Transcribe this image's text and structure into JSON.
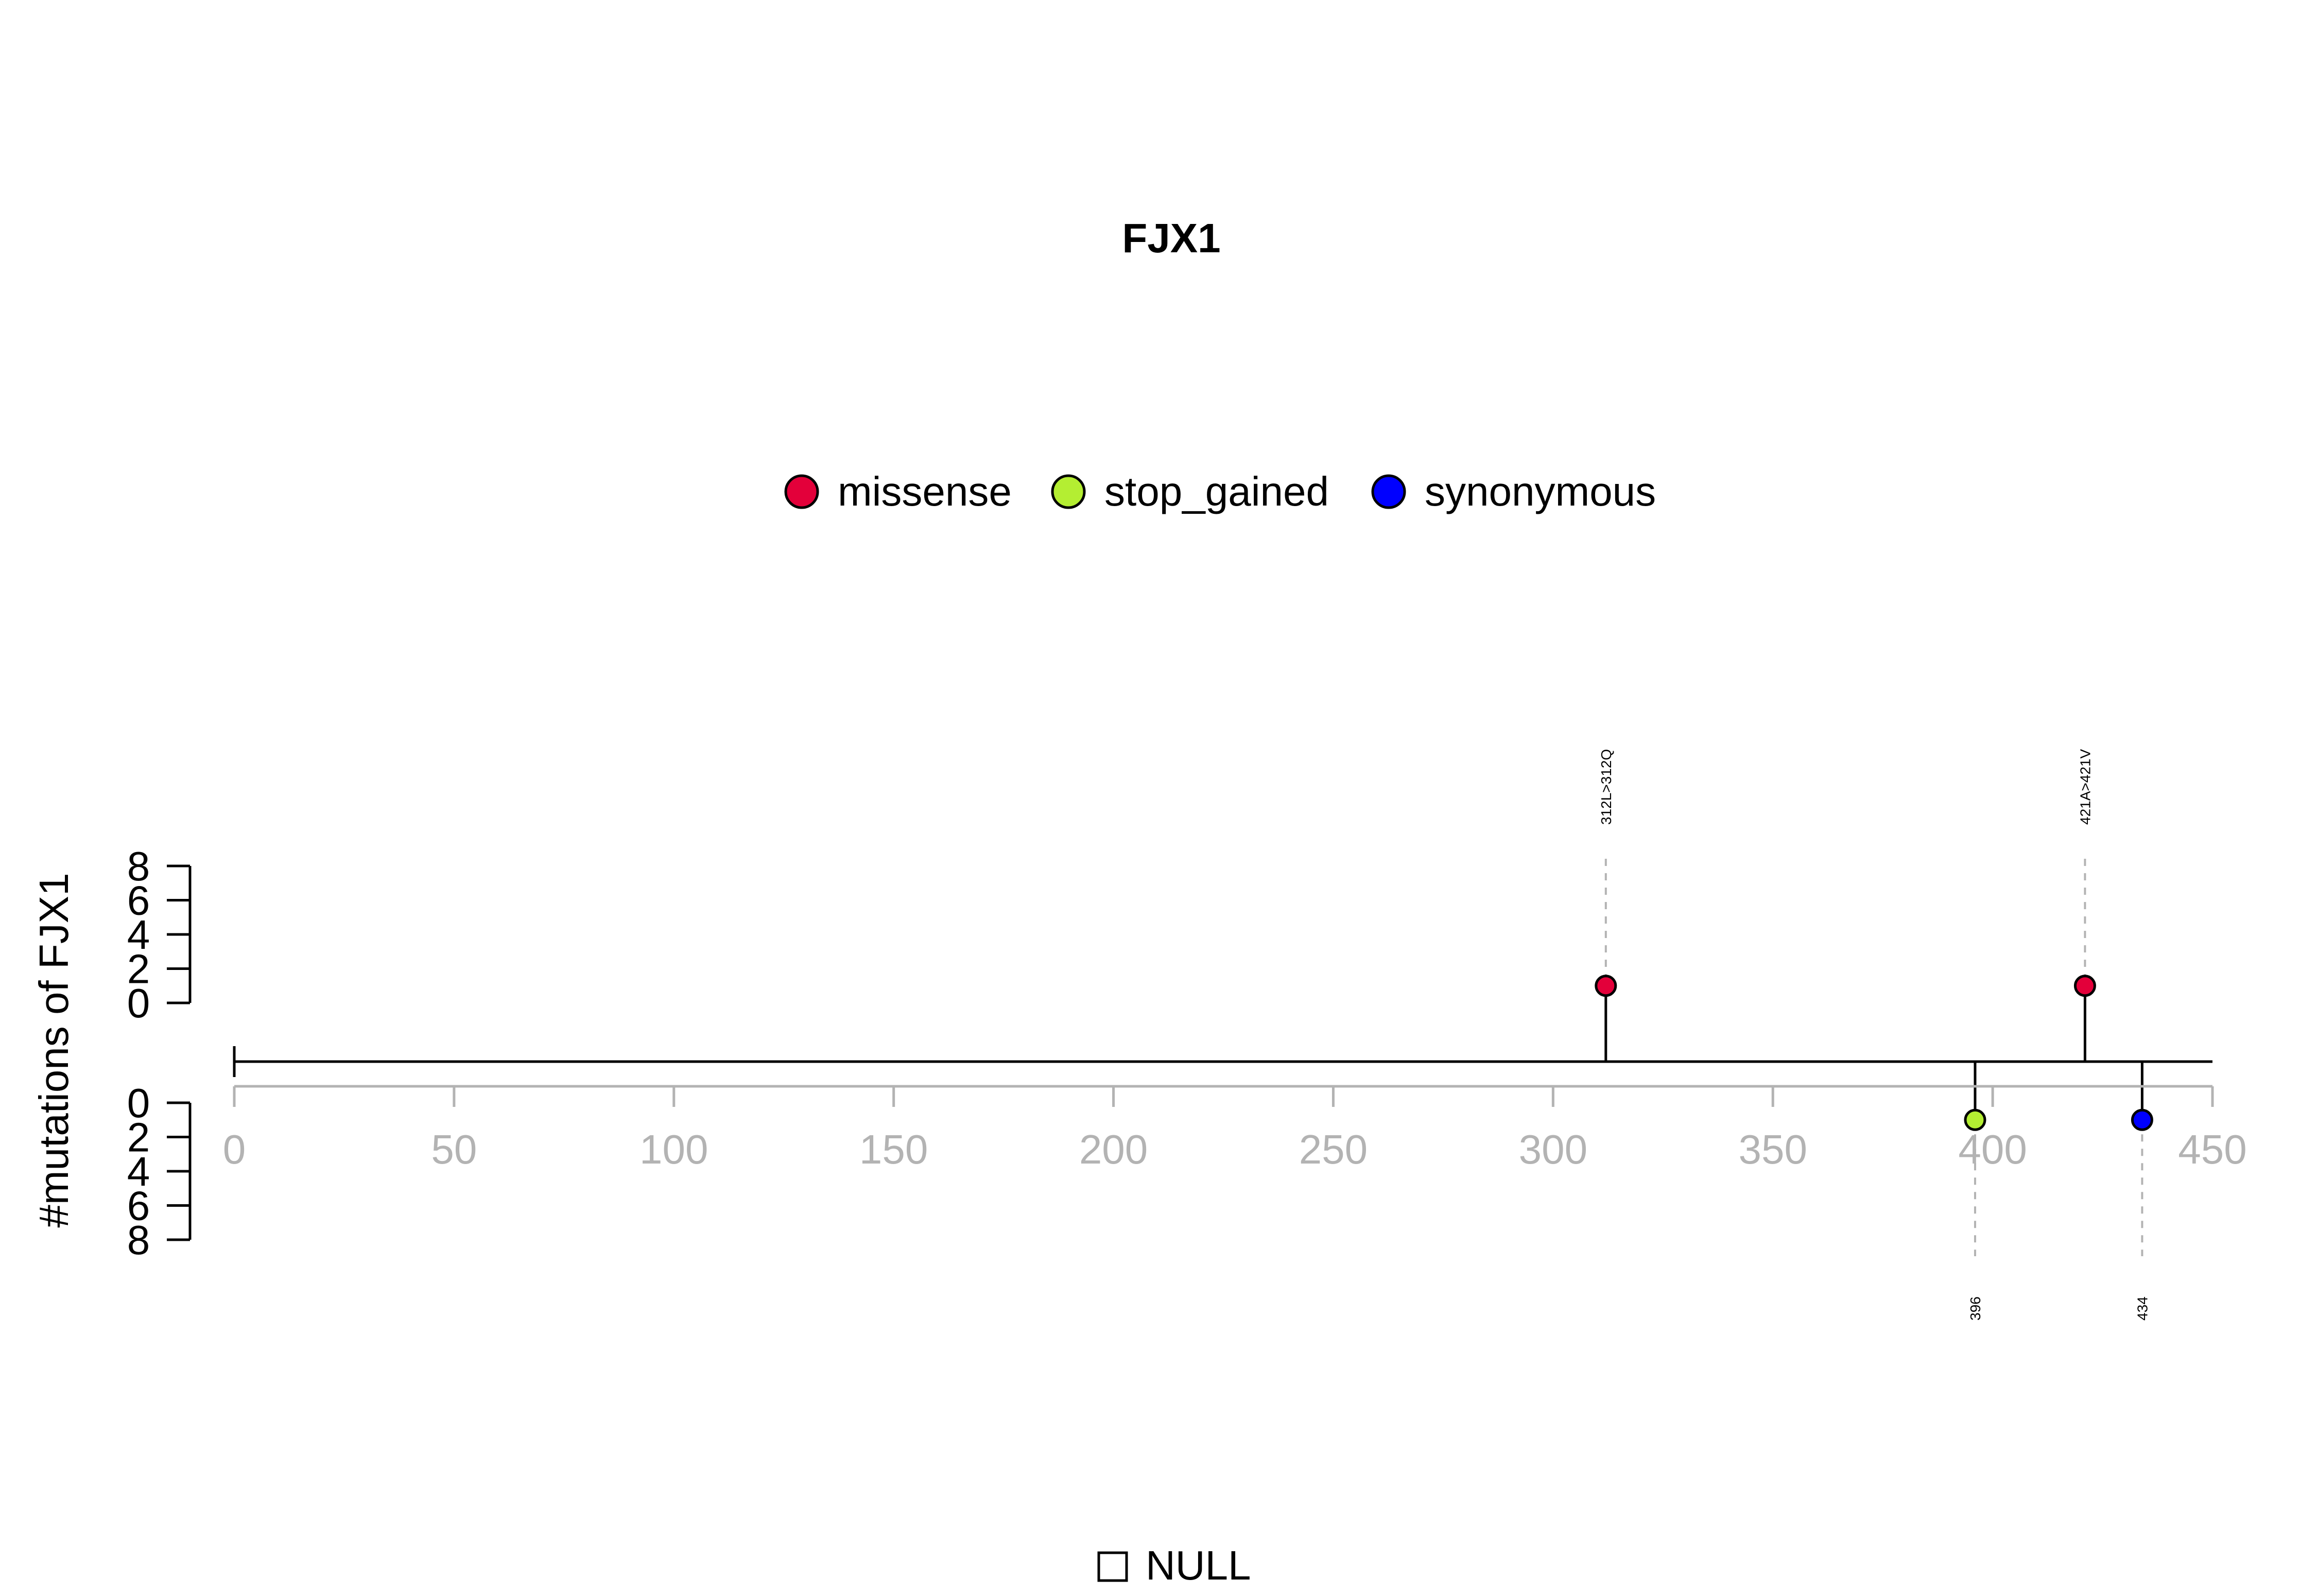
{
  "chart_data": {
    "type": "lollipop",
    "title": "FJX1",
    "ylabel": "#mutations of FJX1",
    "xlim": [
      0,
      450
    ],
    "x_ticks": [
      0,
      50,
      100,
      150,
      200,
      250,
      300,
      350,
      400,
      450
    ],
    "y_ticks": [
      0,
      2,
      4,
      6,
      8
    ],
    "legend": [
      {
        "name": "missense",
        "color": "#e3003a"
      },
      {
        "name": "stop_gained",
        "color": "#b4ee32"
      },
      {
        "name": "synonymous",
        "color": "#0000ff"
      }
    ],
    "legend_placement": "top-center",
    "mutations": [
      {
        "position": 312,
        "count": 1,
        "type": "missense",
        "label": "312L>312Q",
        "side": "up"
      },
      {
        "position": 421,
        "count": 1,
        "type": "missense",
        "label": "421A>421V",
        "side": "up"
      },
      {
        "position": 396,
        "count": 1,
        "type": "stop_gained",
        "label": "396",
        "side": "down"
      },
      {
        "position": 434,
        "count": 1,
        "type": "synonymous",
        "label": "434",
        "side": "down"
      }
    ],
    "domain_legend": [
      {
        "name": "NULL"
      }
    ],
    "colors": {
      "axis_gray": "#b3b3b3",
      "line": "#000000"
    }
  }
}
